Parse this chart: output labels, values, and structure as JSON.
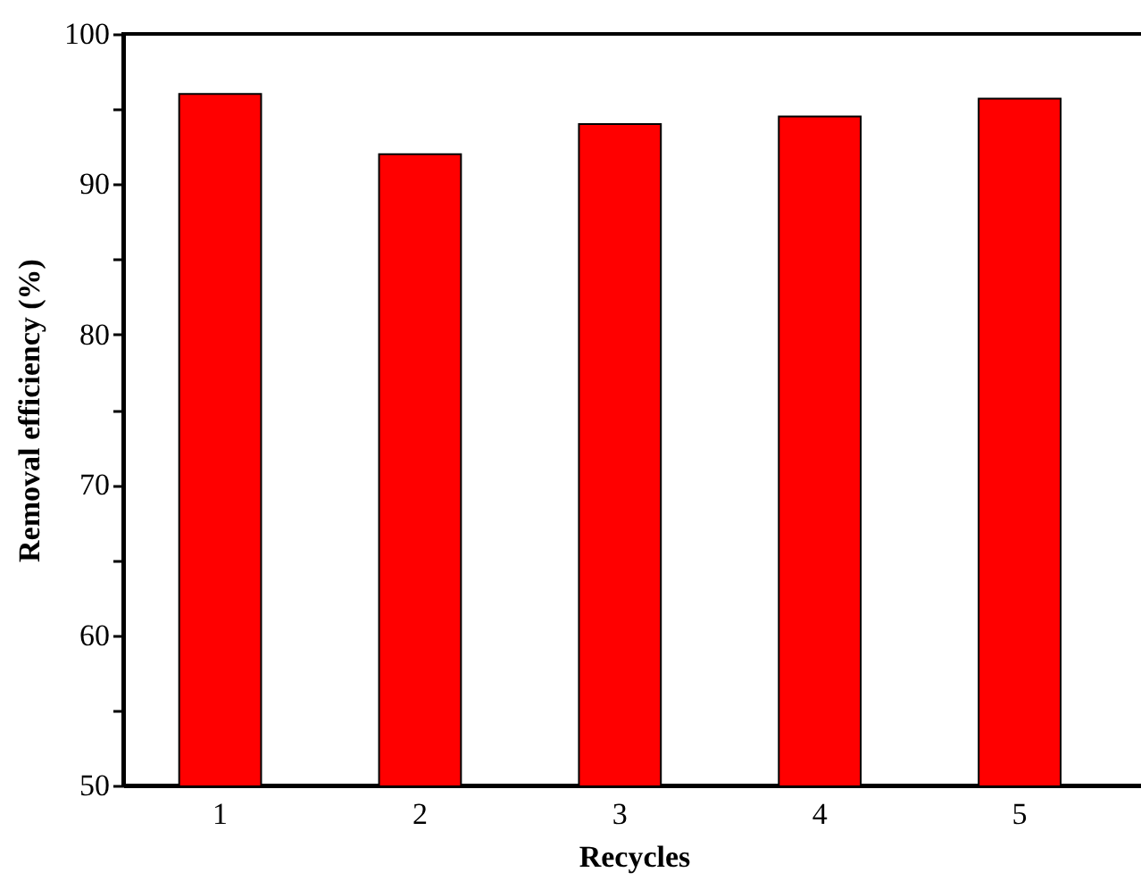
{
  "chart_data": {
    "type": "bar",
    "xlabel": "Recycles",
    "ylabel": "Removal efficiency (%)",
    "categories": [
      "1",
      "2",
      "3",
      "4",
      "5"
    ],
    "values": [
      96.0,
      92.0,
      94.0,
      94.5,
      95.7
    ],
    "color": "#ff0000",
    "ylim": [
      50,
      100
    ],
    "yticks": [
      50,
      {
        "value": 55,
        "label": null
      },
      60,
      {
        "value": 65,
        "label": null
      },
      70,
      {
        "value": 75,
        "label": null
      },
      80,
      {
        "value": 85,
        "label": null
      },
      90,
      {
        "value": 95,
        "label": null
      },
      100
    ],
    "grid": false
  }
}
